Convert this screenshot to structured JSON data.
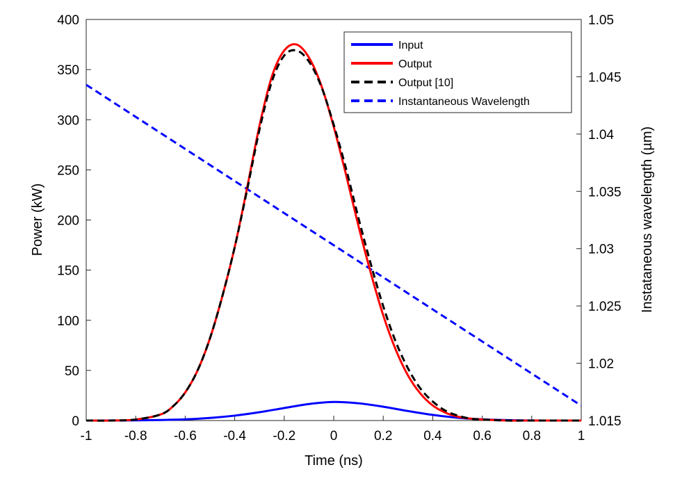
{
  "chart_data": {
    "type": "line",
    "xlabel": "Time (ns)",
    "ylabel": "Power (kW)",
    "y2label": "Instataneous wavelength (µm)",
    "xlim": [
      -1,
      1
    ],
    "ylim": [
      0,
      400
    ],
    "y2lim": [
      1.015,
      1.05
    ],
    "xticks": [
      "-1",
      "-0.8",
      "-0.6",
      "-0.4",
      "-0.2",
      "0",
      "0.2",
      "0.4",
      "0.6",
      "0.8",
      "1"
    ],
    "yticks": [
      "0",
      "50",
      "100",
      "150",
      "200",
      "250",
      "300",
      "350",
      "400"
    ],
    "y2ticks": [
      "1.015",
      "1.02",
      "1.025",
      "1.03",
      "1.035",
      "1.04",
      "1.045",
      "1.05"
    ],
    "legend_position": "top-right",
    "grid": false,
    "series": [
      {
        "name": "Input",
        "axis": "left",
        "color": "#0000ff",
        "style": "solid",
        "x": [
          -1,
          -0.9,
          -0.8,
          -0.7,
          -0.6,
          -0.5,
          -0.4,
          -0.3,
          -0.2,
          -0.1,
          0,
          0.1,
          0.2,
          0.3,
          0.4,
          0.5,
          0.6,
          0.7,
          0.8,
          0.9,
          1
        ],
        "y": [
          0,
          0.05,
          0.2,
          0.5,
          1.2,
          2.6,
          4.9,
          8.3,
          12.5,
          16.5,
          18.5,
          17.2,
          13.8,
          9.5,
          5.6,
          2.8,
          1.2,
          0.4,
          0.1,
          0,
          0
        ]
      },
      {
        "name": "Output",
        "axis": "left",
        "color": "#ff0000",
        "style": "solid",
        "x": [
          -1,
          -0.9,
          -0.8,
          -0.7,
          -0.65,
          -0.6,
          -0.55,
          -0.5,
          -0.45,
          -0.4,
          -0.35,
          -0.3,
          -0.25,
          -0.2,
          -0.15,
          -0.1,
          -0.05,
          0,
          0.05,
          0.1,
          0.15,
          0.2,
          0.25,
          0.3,
          0.35,
          0.4,
          0.45,
          0.5,
          0.55,
          0.6,
          0.7,
          0.8,
          0.9,
          1
        ],
        "y": [
          0,
          0,
          1,
          6,
          14,
          28,
          50,
          82,
          124,
          173,
          232,
          294,
          343,
          369,
          375,
          362,
          334,
          293,
          245,
          194,
          147,
          105,
          71,
          45,
          27,
          15,
          8,
          4,
          2,
          1,
          0,
          0,
          0,
          0
        ]
      },
      {
        "name": "Output [10]",
        "axis": "left",
        "color": "#000000",
        "style": "dashed",
        "x": [
          -1,
          -0.9,
          -0.8,
          -0.7,
          -0.65,
          -0.6,
          -0.55,
          -0.5,
          -0.45,
          -0.4,
          -0.35,
          -0.3,
          -0.25,
          -0.2,
          -0.15,
          -0.1,
          -0.05,
          0,
          0.05,
          0.1,
          0.15,
          0.2,
          0.25,
          0.3,
          0.35,
          0.4,
          0.45,
          0.5,
          0.55,
          0.6,
          0.7,
          0.8,
          0.9,
          1
        ],
        "y": [
          0,
          0,
          1,
          6,
          14,
          28,
          50,
          82,
          124,
          173,
          230,
          290,
          338,
          364,
          369,
          358,
          333,
          295,
          251,
          202,
          156,
          114,
          79,
          52,
          32,
          19,
          10,
          5,
          2,
          1,
          0,
          0,
          0,
          0
        ]
      },
      {
        "name": "Instantaneous Wavelength",
        "axis": "right",
        "color": "#0000ff",
        "style": "dashed",
        "x": [
          -1,
          1
        ],
        "y": [
          1.0443,
          1.0163
        ]
      }
    ]
  }
}
